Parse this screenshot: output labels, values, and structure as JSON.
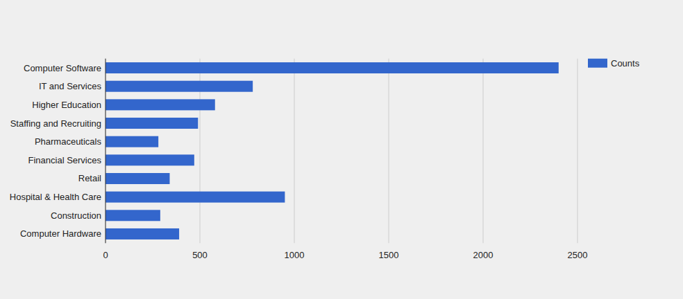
{
  "chart_data": {
    "type": "bar",
    "orientation": "horizontal",
    "categories": [
      "Computer Software",
      "IT and Services",
      "Higher Education",
      "Staffing and Recruiting",
      "Pharmaceuticals",
      "Financial Services",
      "Retail",
      "Hospital & Health Care",
      "Construction",
      "Computer Hardware"
    ],
    "series": [
      {
        "name": "Counts",
        "color": "#3366cc",
        "values": [
          2400,
          780,
          580,
          490,
          280,
          470,
          340,
          950,
          290,
          390
        ]
      }
    ],
    "xlim": [
      0,
      2500
    ],
    "xticks": [
      0,
      500,
      1000,
      1500,
      2000,
      2500
    ],
    "grid": true,
    "legend": "right"
  }
}
